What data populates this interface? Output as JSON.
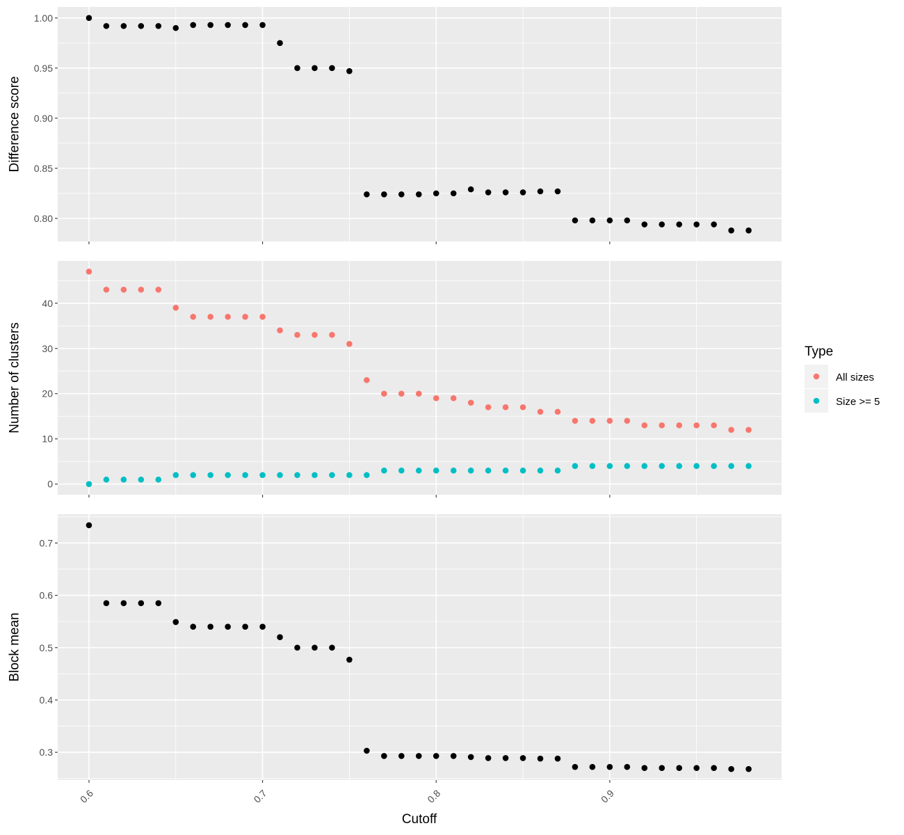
{
  "chart_data": {
    "type": "scatter",
    "xlabel": "Cutoff",
    "x": [
      0.6,
      0.61,
      0.62,
      0.63,
      0.64,
      0.65,
      0.66,
      0.67,
      0.68,
      0.69,
      0.7,
      0.71,
      0.72,
      0.73,
      0.74,
      0.75,
      0.76,
      0.77,
      0.78,
      0.79,
      0.8,
      0.81,
      0.82,
      0.83,
      0.84,
      0.85,
      0.86,
      0.87,
      0.88,
      0.89,
      0.9,
      0.91,
      0.92,
      0.93,
      0.94,
      0.95,
      0.96,
      0.97,
      0.98
    ],
    "xlim": [
      0.582,
      0.999
    ],
    "x_ticks": [
      0.6,
      0.7,
      0.8,
      0.9
    ],
    "x_tick_labels": [
      "0.6",
      "0.7",
      "0.8",
      "0.9"
    ],
    "panels": [
      {
        "ylabel": "Difference score",
        "ylim": [
          0.777,
          1.011
        ],
        "y_ticks": [
          0.8,
          0.85,
          0.9,
          0.95,
          1.0
        ],
        "y_tick_labels": [
          "0.80",
          "0.85",
          "0.90",
          "0.95",
          "1.00"
        ],
        "series": [
          {
            "color": "#000000",
            "values": [
              1.0,
              0.992,
              0.992,
              0.992,
              0.992,
              0.99,
              0.993,
              0.993,
              0.993,
              0.993,
              0.993,
              0.975,
              0.95,
              0.95,
              0.95,
              0.947,
              0.824,
              0.824,
              0.824,
              0.824,
              0.825,
              0.825,
              0.829,
              0.826,
              0.826,
              0.826,
              0.827,
              0.827,
              0.798,
              0.798,
              0.798,
              0.798,
              0.794,
              0.794,
              0.794,
              0.794,
              0.794,
              0.788,
              0.788
            ]
          }
        ]
      },
      {
        "ylabel": "Number of clusters",
        "ylim": [
          -2.35,
          49.35
        ],
        "y_ticks": [
          0,
          10,
          20,
          30,
          40
        ],
        "y_tick_labels": [
          "0",
          "10",
          "20",
          "30",
          "40"
        ],
        "series": [
          {
            "name": "All sizes",
            "color": "#F8766D",
            "values": [
              47,
              43,
              43,
              43,
              43,
              39,
              37,
              37,
              37,
              37,
              37,
              34,
              33,
              33,
              33,
              31,
              23,
              20,
              20,
              20,
              19,
              19,
              18,
              17,
              17,
              17,
              16,
              16,
              14,
              14,
              14,
              14,
              13,
              13,
              13,
              13,
              13,
              12,
              12
            ]
          },
          {
            "name": "Size >= 5",
            "color": "#00BFC4",
            "values": [
              0,
              1,
              1,
              1,
              1,
              2,
              2,
              2,
              2,
              2,
              2,
              2,
              2,
              2,
              2,
              2,
              2,
              3,
              3,
              3,
              3,
              3,
              3,
              3,
              3,
              3,
              3,
              3,
              4,
              4,
              4,
              4,
              4,
              4,
              4,
              4,
              4,
              4,
              4
            ]
          }
        ]
      },
      {
        "ylabel": "Block mean",
        "ylim": [
          0.247,
          0.755
        ],
        "y_ticks": [
          0.3,
          0.4,
          0.5,
          0.6,
          0.7
        ],
        "y_tick_labels": [
          "0.3",
          "0.4",
          "0.5",
          "0.6",
          "0.7"
        ],
        "series": [
          {
            "color": "#000000",
            "values": [
              0.734,
              0.585,
              0.585,
              0.585,
              0.585,
              0.549,
              0.54,
              0.54,
              0.54,
              0.54,
              0.54,
              0.52,
              0.5,
              0.5,
              0.5,
              0.477,
              0.303,
              0.293,
              0.293,
              0.293,
              0.293,
              0.293,
              0.291,
              0.289,
              0.289,
              0.289,
              0.288,
              0.288,
              0.272,
              0.272,
              0.272,
              0.272,
              0.27,
              0.27,
              0.27,
              0.27,
              0.27,
              0.268,
              0.268
            ]
          }
        ]
      }
    ],
    "legend": {
      "title": "Type",
      "position": "right",
      "entries": [
        {
          "label": "All sizes",
          "color": "#F8766D"
        },
        {
          "label": "Size >= 5",
          "color": "#00BFC4"
        }
      ]
    },
    "grid": true,
    "panel_background": "#EBEBEB"
  }
}
